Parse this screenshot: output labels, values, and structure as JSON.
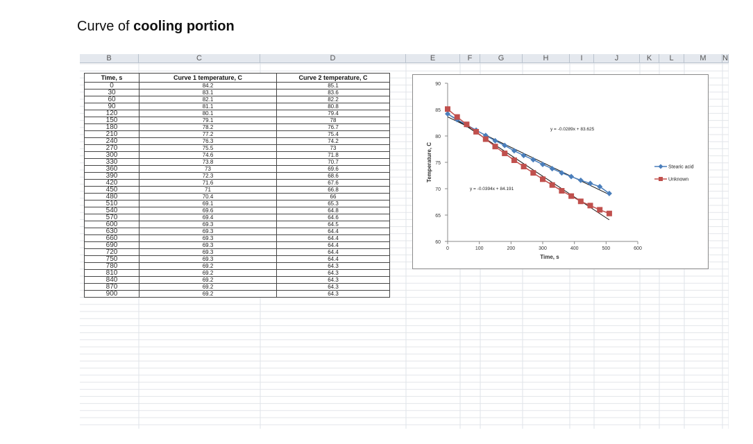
{
  "page": {
    "title_prefix": "Curve of ",
    "title_bold": "cooling portion"
  },
  "sheet": {
    "columns": [
      "B",
      "C",
      "D",
      "E",
      "F",
      "G",
      "H",
      "I",
      "J",
      "K",
      "L",
      "M",
      "N"
    ]
  },
  "table": {
    "headers": [
      "Time, s",
      "Curve 1 temperature, C",
      "Curve 2 temperature, C"
    ],
    "rows": [
      [
        "0",
        "84.2",
        "85.1"
      ],
      [
        "30",
        "83.1",
        "83.6"
      ],
      [
        "60",
        "82.1",
        "82.2"
      ],
      [
        "90",
        "81.1",
        "80.8"
      ],
      [
        "120",
        "80.1",
        "79.4"
      ],
      [
        "150",
        "79.1",
        "78"
      ],
      [
        "180",
        "78.2",
        "76.7"
      ],
      [
        "210",
        "77.2",
        "75.4"
      ],
      [
        "240",
        "76.3",
        "74.2"
      ],
      [
        "270",
        "75.5",
        "73"
      ],
      [
        "300",
        "74.6",
        "71.8"
      ],
      [
        "330",
        "73.8",
        "70.7"
      ],
      [
        "360",
        "73",
        "69.6"
      ],
      [
        "390",
        "72.3",
        "68.6"
      ],
      [
        "420",
        "71.6",
        "67.6"
      ],
      [
        "450",
        "71",
        "66.8"
      ],
      [
        "480",
        "70.4",
        "66"
      ],
      [
        "510",
        "69.1",
        "65.3"
      ],
      [
        "540",
        "69.6",
        "64.8"
      ],
      [
        "570",
        "69.4",
        "64.6"
      ],
      [
        "600",
        "69.3",
        "64.5"
      ],
      [
        "630",
        "69.3",
        "64.4"
      ],
      [
        "660",
        "69.3",
        "64.4"
      ],
      [
        "690",
        "69.3",
        "64.4"
      ],
      [
        "720",
        "69.3",
        "64.4"
      ],
      [
        "750",
        "69.3",
        "64.4"
      ],
      [
        "780",
        "69.2",
        "64.3"
      ],
      [
        "810",
        "69.2",
        "64.3"
      ],
      [
        "840",
        "69.2",
        "64.3"
      ],
      [
        "870",
        "69.2",
        "64.3"
      ],
      [
        "900",
        "69.2",
        "64.3"
      ]
    ]
  },
  "chart_data": {
    "type": "scatter",
    "title": "",
    "xlabel": "Time, s",
    "ylabel": "Temperature, C",
    "xlim": [
      0,
      600
    ],
    "ylim": [
      60,
      90
    ],
    "xticks": [
      0,
      100,
      200,
      300,
      400,
      500,
      600
    ],
    "yticks": [
      60,
      65,
      70,
      75,
      80,
      85,
      90
    ],
    "grid": false,
    "legend_position": "right",
    "series": [
      {
        "name": "Stearic acid",
        "color": "#4a7ebb",
        "marker": "diamond",
        "x": [
          0,
          30,
          60,
          90,
          120,
          150,
          180,
          210,
          240,
          270,
          300,
          330,
          360,
          390,
          420,
          450,
          480,
          510
        ],
        "y": [
          84.2,
          83.1,
          82.1,
          81.1,
          80.1,
          79.1,
          78.2,
          77.2,
          76.3,
          75.5,
          74.6,
          73.8,
          73,
          72.3,
          71.6,
          71,
          70.4,
          69.1
        ],
        "trendline": {
          "slope": -0.0289,
          "intercept": 83.625,
          "label": "y = -0.0289x + 83.625"
        }
      },
      {
        "name": "Unknown",
        "color": "#c0504d",
        "marker": "square",
        "x": [
          0,
          30,
          60,
          90,
          120,
          150,
          180,
          210,
          240,
          270,
          300,
          330,
          360,
          390,
          420,
          450,
          480,
          510
        ],
        "y": [
          85.1,
          83.6,
          82.2,
          80.8,
          79.4,
          78,
          76.7,
          75.4,
          74.2,
          73,
          71.8,
          70.7,
          69.6,
          68.6,
          67.6,
          66.8,
          66,
          65.3
        ],
        "trendline": {
          "slope": -0.0394,
          "intercept": 84.191,
          "label": "y = -0.0394x + 84.191"
        }
      }
    ]
  }
}
